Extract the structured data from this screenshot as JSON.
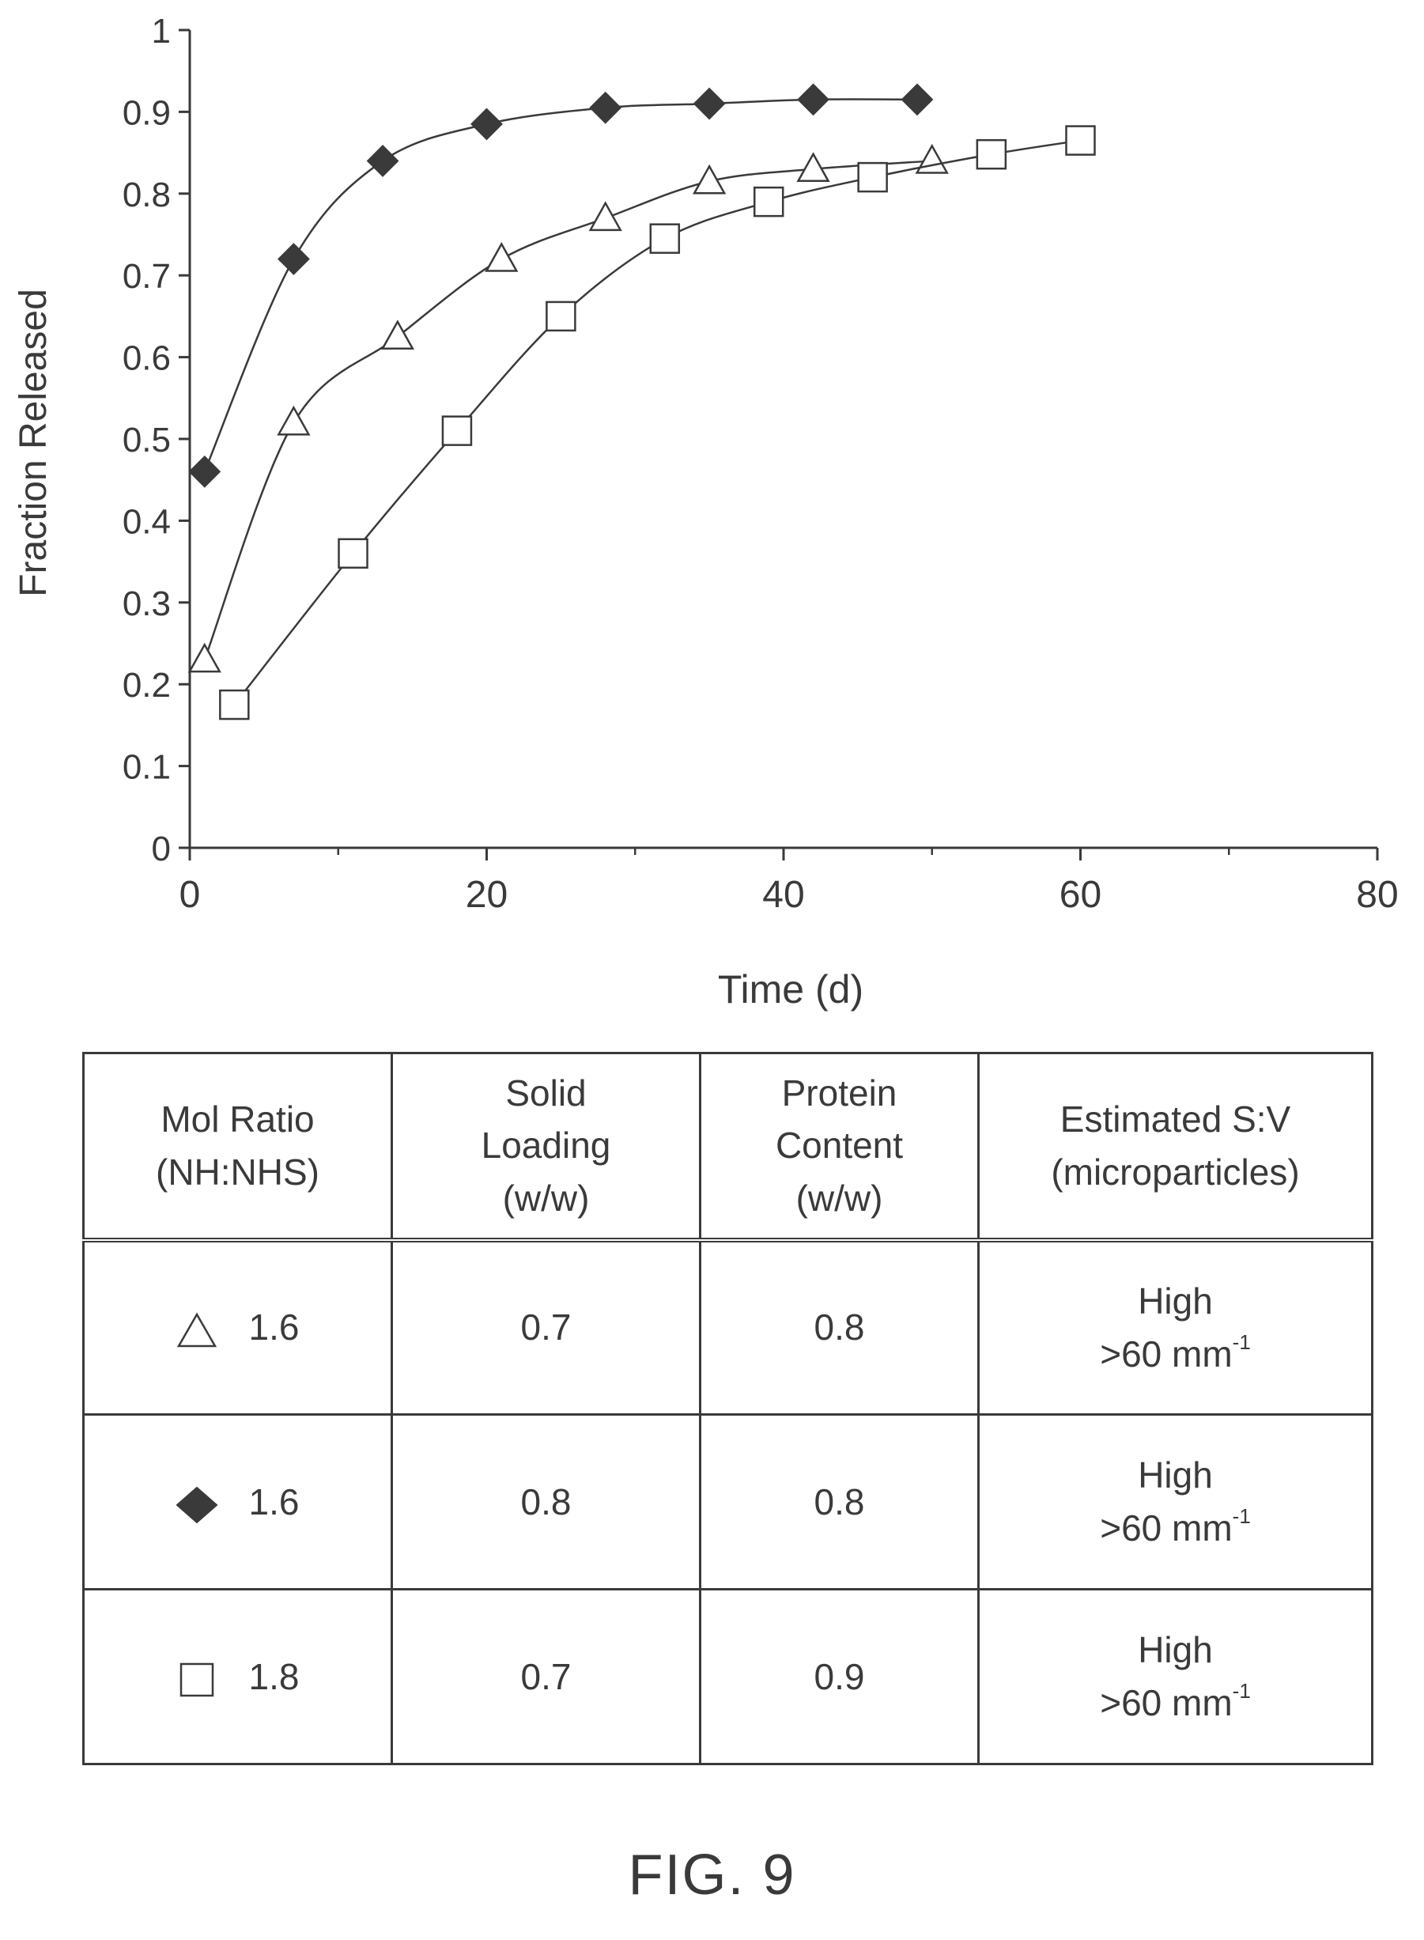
{
  "chart_data": {
    "type": "scatter",
    "xlabel": "Time (d)",
    "ylabel": "Fraction Released",
    "xlim": [
      0,
      80
    ],
    "ylim": [
      0,
      1
    ],
    "x_ticks": [
      "0",
      "20",
      "40",
      "60",
      "80"
    ],
    "y_ticks": [
      "0",
      "0.1",
      "0.2",
      "0.3",
      "0.4",
      "0.5",
      "0.6",
      "0.7",
      "0.8",
      "0.9",
      "1"
    ],
    "grid": false,
    "series": [
      {
        "marker": "triangle",
        "fill": "#ffffff",
        "x": [
          1,
          7,
          14,
          21,
          28,
          35,
          42,
          50
        ],
        "y": [
          0.23,
          0.52,
          0.625,
          0.72,
          0.77,
          0.815,
          0.83,
          0.84
        ]
      },
      {
        "marker": "diamond",
        "fill": "#3a3a3a",
        "x": [
          1,
          7,
          13,
          20,
          28,
          35,
          42,
          49
        ],
        "y": [
          0.46,
          0.72,
          0.84,
          0.885,
          0.905,
          0.91,
          0.915,
          0.915
        ]
      },
      {
        "marker": "square",
        "fill": "#ffffff",
        "x": [
          3,
          11,
          18,
          25,
          32,
          39,
          46,
          54,
          60
        ],
        "y": [
          0.175,
          0.36,
          0.51,
          0.65,
          0.745,
          0.79,
          0.82,
          0.848,
          0.865
        ]
      }
    ]
  },
  "table": {
    "headers": [
      [
        "Mol Ratio",
        "(NH:NHS)"
      ],
      [
        "Solid",
        "Loading",
        "(w/w)"
      ],
      [
        "Protein",
        "Content",
        "(w/w)"
      ],
      [
        "Estimated S:V",
        "(microparticles)"
      ]
    ],
    "rows": [
      {
        "marker": "triangle",
        "ratio": "1.6",
        "solid": "0.7",
        "protein": "0.8",
        "sv_label": "High",
        "sv_value": ">60 mm",
        "sv_exp": "-1"
      },
      {
        "marker": "diamond",
        "ratio": "1.6",
        "solid": "0.8",
        "protein": "0.8",
        "sv_label": "High",
        "sv_value": ">60 mm",
        "sv_exp": "-1"
      },
      {
        "marker": "square",
        "ratio": "1.8",
        "solid": "0.7",
        "protein": "0.9",
        "sv_label": "High",
        "sv_value": ">60 mm",
        "sv_exp": "-1"
      }
    ]
  },
  "figure_label": "FIG. 9"
}
